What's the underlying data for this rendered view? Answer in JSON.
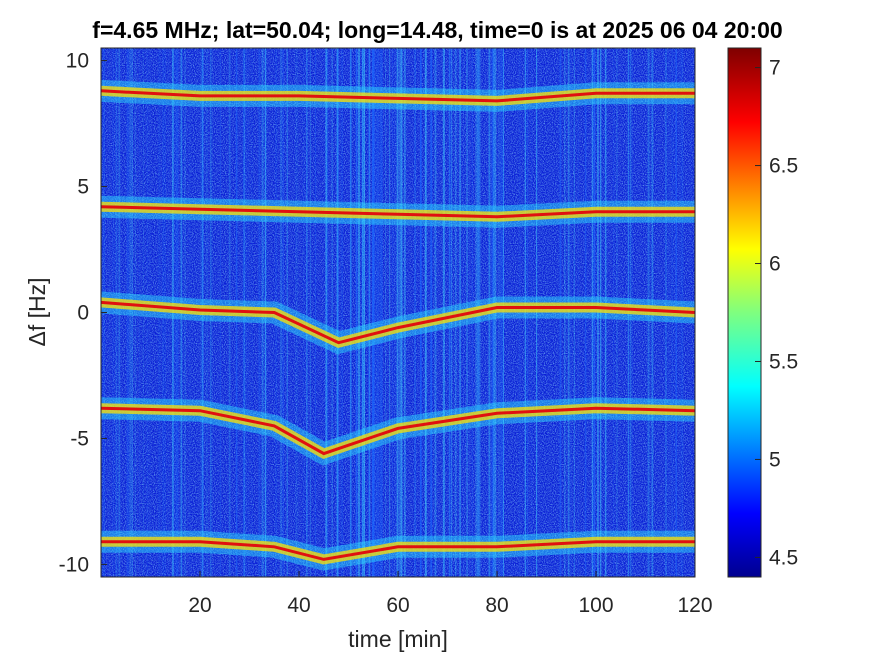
{
  "chart_data": {
    "type": "heatmap",
    "title": "f=4.65 MHz;  lat=50.04; long=14.48, time=0 is at 2025 06 04 20:00",
    "xlabel": "time [min]",
    "ylabel": "Δf [Hz]",
    "xlim": [
      0,
      120
    ],
    "ylim": [
      -10.5,
      10.5
    ],
    "xticks": [
      20,
      40,
      60,
      80,
      100,
      120
    ],
    "xtick_labels": [
      "20",
      "40",
      "60",
      "80",
      "100",
      "120"
    ],
    "yticks": [
      10,
      5,
      0,
      -5,
      -10
    ],
    "ytick_labels": [
      "10",
      "5",
      "0",
      "-5",
      "-10"
    ],
    "colorbar": {
      "colormap": "jet",
      "range": [
        4.4,
        7.1
      ],
      "ticks": [
        7,
        6.5,
        6,
        5.5,
        5,
        4.5
      ],
      "tick_labels": [
        "7",
        "6.5",
        "6",
        "5.5",
        "5",
        "4.5"
      ]
    },
    "traces": [
      {
        "name": "",
        "points": [
          [
            0,
            8.8
          ],
          [
            20,
            8.6
          ],
          [
            40,
            8.6
          ],
          [
            60,
            8.5
          ],
          [
            80,
            8.4
          ],
          [
            100,
            8.7
          ],
          [
            120,
            8.7
          ]
        ]
      },
      {
        "name": "",
        "points": [
          [
            0,
            4.2
          ],
          [
            20,
            4.1
          ],
          [
            40,
            4.0
          ],
          [
            60,
            3.9
          ],
          [
            80,
            3.8
          ],
          [
            100,
            4.0
          ],
          [
            120,
            4.0
          ]
        ]
      },
      {
        "name": "",
        "points": [
          [
            0,
            0.4
          ],
          [
            20,
            0.1
          ],
          [
            35,
            0.0
          ],
          [
            48,
            -1.2
          ],
          [
            60,
            -0.6
          ],
          [
            80,
            0.2
          ],
          [
            100,
            0.2
          ],
          [
            120,
            0.0
          ]
        ]
      },
      {
        "name": "",
        "points": [
          [
            0,
            -3.8
          ],
          [
            20,
            -3.9
          ],
          [
            35,
            -4.5
          ],
          [
            45,
            -5.6
          ],
          [
            60,
            -4.6
          ],
          [
            80,
            -4.0
          ],
          [
            100,
            -3.8
          ],
          [
            120,
            -3.9
          ]
        ]
      },
      {
        "name": "",
        "points": [
          [
            0,
            -9.1
          ],
          [
            20,
            -9.1
          ],
          [
            35,
            -9.3
          ],
          [
            45,
            -9.8
          ],
          [
            60,
            -9.3
          ],
          [
            80,
            -9.3
          ],
          [
            100,
            -9.1
          ],
          [
            120,
            -9.1
          ]
        ]
      }
    ]
  }
}
